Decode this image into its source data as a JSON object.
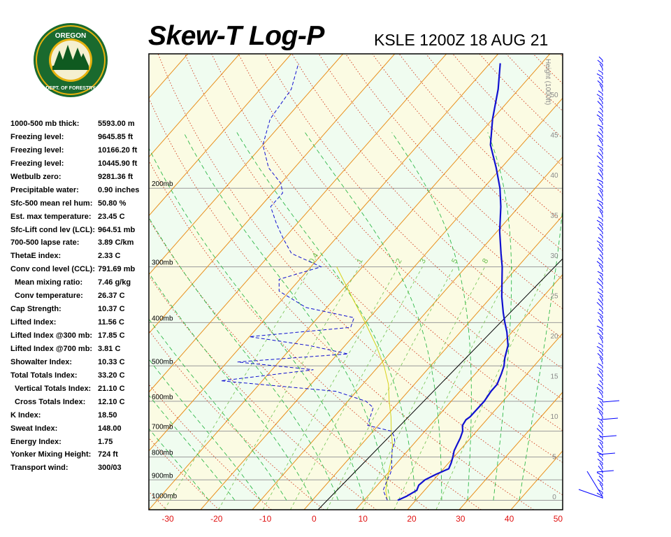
{
  "header": {
    "title": "Skew-T Log-P",
    "station": "KSLE 1200Z 18 AUG 21"
  },
  "logo": {
    "top_text": "OREGON",
    "bottom_text": "DEPARTMENT OF FORESTRY",
    "colors": {
      "ring": "#1a6a2e",
      "gold": "#e6b10e",
      "tree": "#0f5a20"
    }
  },
  "indices": [
    {
      "label": "1000-500 mb thick:",
      "value": "5593.00 m",
      "indent": false
    },
    {
      "label": "Freezing level:",
      "value": "9645.85 ft",
      "indent": false
    },
    {
      "label": "Freezing level:",
      "value": "10166.20 ft",
      "indent": false
    },
    {
      "label": "Freezing level:",
      "value": "10445.90 ft",
      "indent": false
    },
    {
      "label": "Wetbulb zero:",
      "value": "9281.36 ft",
      "indent": false
    },
    {
      "label": "Precipitable water:",
      "value": "0.90 inches",
      "indent": false
    },
    {
      "label": "Sfc-500 mean rel hum:",
      "value": "50.80 %",
      "indent": false
    },
    {
      "label": "Est. max temperature:",
      "value": "23.45 C",
      "indent": false
    },
    {
      "label": "Sfc-Lift cond lev (LCL):",
      "value": "964.51 mb",
      "indent": false
    },
    {
      "label": "700-500 lapse rate:",
      "value": "3.89 C/km",
      "indent": false
    },
    {
      "label": "ThetaE index:",
      "value": "2.33 C",
      "indent": false
    },
    {
      "label": "Conv cond level (CCL):",
      "value": "791.69 mb",
      "indent": false
    },
    {
      "label": "Mean mixing ratio:",
      "value": "7.46 g/kg",
      "indent": true
    },
    {
      "label": "Conv temperature:",
      "value": "26.37 C",
      "indent": true
    },
    {
      "label": "Cap Strength:",
      "value": "10.37 C",
      "indent": false
    },
    {
      "label": "Lifted Index:",
      "value": "11.56 C",
      "indent": false
    },
    {
      "label": "Lifted Index @300 mb:",
      "value": "17.85 C",
      "indent": false
    },
    {
      "label": "Lifted Index @700 mb:",
      "value": "3.81 C",
      "indent": false
    },
    {
      "label": "Showalter Index:",
      "value": "10.33 C",
      "indent": false
    },
    {
      "label": "Total Totals Index:",
      "value": "33.20 C",
      "indent": false
    },
    {
      "label": "Vertical Totals Index:",
      "value": "21.10 C",
      "indent": true
    },
    {
      "label": "Cross Totals Index:",
      "value": "12.10 C",
      "indent": true
    },
    {
      "label": "K Index:",
      "value": "18.50",
      "indent": false
    },
    {
      "label": "Sweat Index:",
      "value": "148.00",
      "indent": false
    },
    {
      "label": "Energy Index:",
      "value": "1.75",
      "indent": false
    },
    {
      "label": "Yonker Mixing Height:",
      "value": "724 ft",
      "indent": false
    },
    {
      "label": "Transport wind:",
      "value": "300/03",
      "indent": false
    }
  ],
  "chart_data": {
    "type": "line",
    "title": "Skew-T Log-P",
    "subtitle": "KSLE 1200Z 18 AUG 21",
    "x_axis": {
      "label": "",
      "unit": "C",
      "range": [
        -30,
        50
      ],
      "ticks": [
        -30,
        -20,
        -10,
        0,
        10,
        20,
        30,
        40,
        50
      ]
    },
    "y_axis": {
      "label": "",
      "scale": "log-pressure",
      "range_mb": [
        1050,
        100
      ],
      "ticks": [
        1000,
        900,
        800,
        700,
        600,
        500,
        400,
        300,
        200
      ],
      "tick_labels": [
        "1000mb",
        "900mb",
        "800mb",
        "700mb",
        "600mb",
        "500mb",
        "400mb",
        "300mb",
        "200mb"
      ]
    },
    "height_axis": {
      "label": "Height (1000ft)",
      "ticks": [
        0,
        5,
        10,
        15,
        20,
        25,
        30,
        35,
        40,
        45,
        50
      ]
    },
    "mixing_ratio_labels": [
      "0.4",
      "1",
      "2",
      "3",
      "5",
      "8"
    ],
    "series": [
      {
        "line": "solid",
        "color": "#1010d0",
        "points": [
          [
            1000,
            16.5
          ],
          [
            980,
            17.5
          ],
          [
            950,
            18.5
          ],
          [
            925,
            18
          ],
          [
            900,
            18.3
          ],
          [
            875,
            19.5
          ],
          [
            850,
            21
          ],
          [
            825,
            20.5
          ],
          [
            800,
            19.8
          ],
          [
            775,
            19
          ],
          [
            750,
            18.5
          ],
          [
            725,
            18
          ],
          [
            700,
            17.3
          ],
          [
            680,
            16.3
          ],
          [
            660,
            16
          ],
          [
            650,
            16.3
          ],
          [
            600,
            16.4
          ],
          [
            570,
            16
          ],
          [
            550,
            16
          ],
          [
            520,
            15
          ],
          [
            500,
            14.2
          ],
          [
            480,
            13
          ],
          [
            450,
            11.5
          ],
          [
            420,
            9
          ],
          [
            400,
            7
          ],
          [
            380,
            5
          ],
          [
            350,
            2
          ],
          [
            300,
            -3
          ],
          [
            280,
            -5.5
          ],
          [
            250,
            -9.5
          ],
          [
            220,
            -13.5
          ],
          [
            200,
            -16.8
          ],
          [
            180,
            -21
          ],
          [
            160,
            -26
          ],
          [
            140,
            -30
          ],
          [
            120,
            -34
          ],
          [
            105,
            -38
          ]
        ]
      },
      {
        "line": "dashed",
        "color": "#1010d0",
        "points": [
          [
            1000,
            14.5
          ],
          [
            950,
            12
          ],
          [
            900,
            11
          ],
          [
            870,
            10.5
          ],
          [
            850,
            10
          ],
          [
            825,
            9
          ],
          [
            800,
            8
          ],
          [
            775,
            7
          ],
          [
            740,
            6
          ],
          [
            720,
            5
          ],
          [
            700,
            3.5
          ],
          [
            680,
            -2
          ],
          [
            650,
            -3
          ],
          [
            620,
            -4
          ],
          [
            600,
            -6.5
          ],
          [
            570,
            -14
          ],
          [
            540,
            -38
          ],
          [
            510,
            -22
          ],
          [
            490,
            -38
          ],
          [
            470,
            -18
          ],
          [
            450,
            -27
          ],
          [
            430,
            -40
          ],
          [
            410,
            -22
          ],
          [
            390,
            -23
          ],
          [
            370,
            -34
          ],
          [
            340,
            -42
          ],
          [
            320,
            -44
          ],
          [
            300,
            -38
          ],
          [
            280,
            -46
          ],
          [
            260,
            -50
          ],
          [
            240,
            -54
          ],
          [
            220,
            -58
          ],
          [
            205,
            -58
          ],
          [
            195,
            -60
          ],
          [
            180,
            -65
          ],
          [
            160,
            -70
          ],
          [
            140,
            -73
          ],
          [
            120,
            -74
          ],
          [
            105,
            -77
          ]
        ]
      }
    ],
    "wind_barbs": {
      "color": "#0000ff"
    }
  }
}
